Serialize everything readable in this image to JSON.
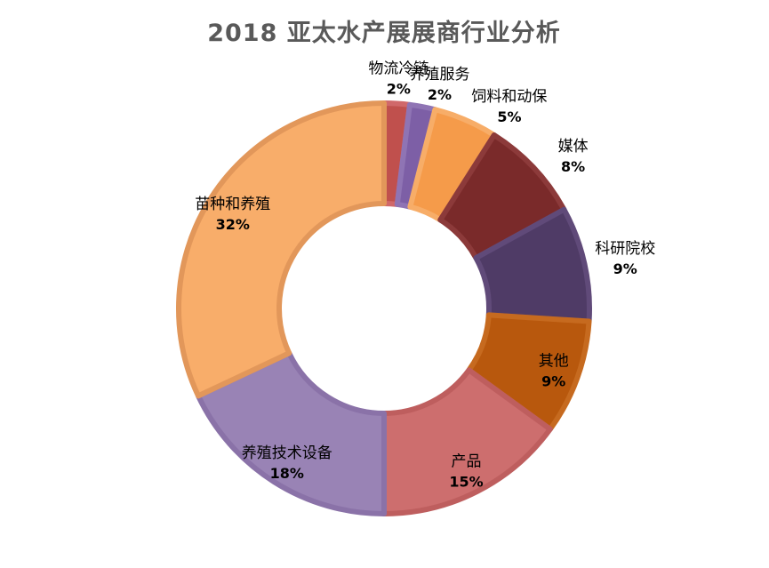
{
  "chart_data": {
    "type": "pie",
    "subtype": "donut",
    "title": "2018 亚太水产展展商行业分析",
    "start": "top",
    "direction": "clockwise",
    "legend": "none",
    "slices": [
      {
        "label": "物流冷链",
        "value": 2,
        "pct_label": "2%",
        "color": "#c0504d",
        "border": "#d0686a"
      },
      {
        "label": "养殖服务",
        "value": 2,
        "pct_label": "2%",
        "color": "#7d5fa6",
        "border": "#8f74b4"
      },
      {
        "label": "饲料和动保",
        "value": 5,
        "pct_label": "5%",
        "color": "#f59b4a",
        "border": "#f7ad68"
      },
      {
        "label": "媒体",
        "value": 8,
        "pct_label": "8%",
        "color": "#7a2a2a",
        "border": "#8c3a3a"
      },
      {
        "label": "科研院校",
        "value": 9,
        "pct_label": "9%",
        "color": "#4f3b66",
        "border": "#604a79"
      },
      {
        "label": "其他",
        "value": 9,
        "pct_label": "9%",
        "color": "#b8580d",
        "border": "#c66a1f"
      },
      {
        "label": "产品",
        "value": 15,
        "pct_label": "15%",
        "color": "#cd6e6e",
        "border": "#be5e5e"
      },
      {
        "label": "养殖技术设备",
        "value": 18,
        "pct_label": "18%",
        "color": "#9983b5",
        "border": "#8a72a8"
      },
      {
        "label": "苗种和养殖",
        "value": 32,
        "pct_label": "32%",
        "color": "#f8ad6a",
        "border": "#e2975a"
      }
    ]
  }
}
